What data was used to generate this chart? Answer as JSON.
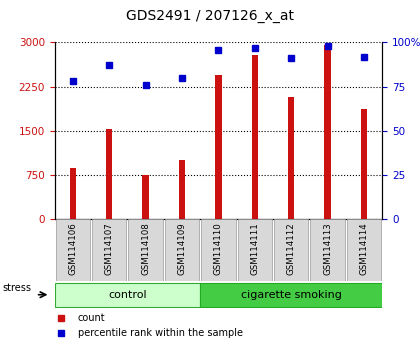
{
  "title": "GDS2491 / 207126_x_at",
  "samples": [
    "GSM114106",
    "GSM114107",
    "GSM114108",
    "GSM114109",
    "GSM114110",
    "GSM114111",
    "GSM114112",
    "GSM114113",
    "GSM114114"
  ],
  "counts": [
    870,
    1530,
    760,
    1000,
    2450,
    2780,
    2080,
    2950,
    1870
  ],
  "percentiles": [
    78,
    87,
    76,
    80,
    96,
    97,
    91,
    98,
    92
  ],
  "ylim_left": [
    0,
    3000
  ],
  "ylim_right": [
    0,
    100
  ],
  "yticks_left": [
    0,
    750,
    1500,
    2250,
    3000
  ],
  "yticks_right": [
    0,
    25,
    50,
    75,
    100
  ],
  "bar_color": "#cc1111",
  "dot_color": "#0000cc",
  "n_control": 4,
  "n_smoking": 5,
  "control_label": "control",
  "smoking_label": "cigarette smoking",
  "stress_label": "stress",
  "control_bg": "#ccffcc",
  "smoking_bg": "#44cc44",
  "legend_count": "count",
  "legend_pct": "percentile rank within the sample",
  "bar_width": 0.18,
  "title_fontsize": 10,
  "tick_fontsize": 7.5,
  "label_fontsize": 8
}
